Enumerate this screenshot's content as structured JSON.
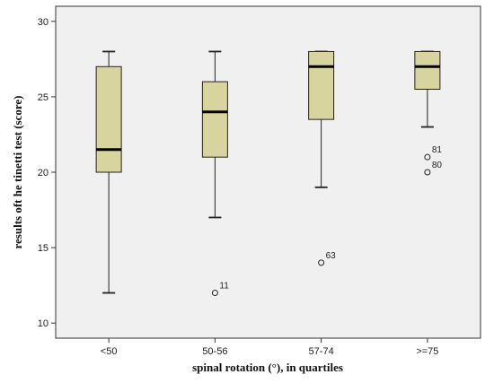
{
  "chart_data": {
    "type": "box",
    "xlabel": "spinal rotation (°), in quartiles",
    "ylabel": "results oft he tinetti test (score)",
    "ylim": [
      9,
      31
    ],
    "yticks": [
      10,
      15,
      20,
      25,
      30
    ],
    "grid": false,
    "box_color": "#d8d4a0",
    "plot_background": "#f0f0f0",
    "categories": [
      "<50",
      "50-56",
      "57-74",
      ">=75"
    ],
    "boxes": [
      {
        "category": "<50",
        "whisker_low": 12,
        "q1": 20,
        "median": 21.5,
        "q3": 27,
        "whisker_high": 28,
        "outliers": []
      },
      {
        "category": "50-56",
        "whisker_low": 17,
        "q1": 21,
        "median": 24,
        "q3": 26,
        "whisker_high": 28,
        "outliers": [
          {
            "value": 12,
            "label": "11"
          }
        ]
      },
      {
        "category": "57-74",
        "whisker_low": 19,
        "q1": 23.5,
        "median": 27,
        "q3": 28,
        "whisker_high": 28,
        "outliers": [
          {
            "value": 14,
            "label": "63"
          }
        ]
      },
      {
        "category": ">=75",
        "whisker_low": 23,
        "q1": 25.5,
        "median": 27,
        "q3": 28,
        "whisker_high": 28,
        "outliers": [
          {
            "value": 21,
            "label": "81"
          },
          {
            "value": 20,
            "label": "80"
          }
        ]
      }
    ]
  }
}
